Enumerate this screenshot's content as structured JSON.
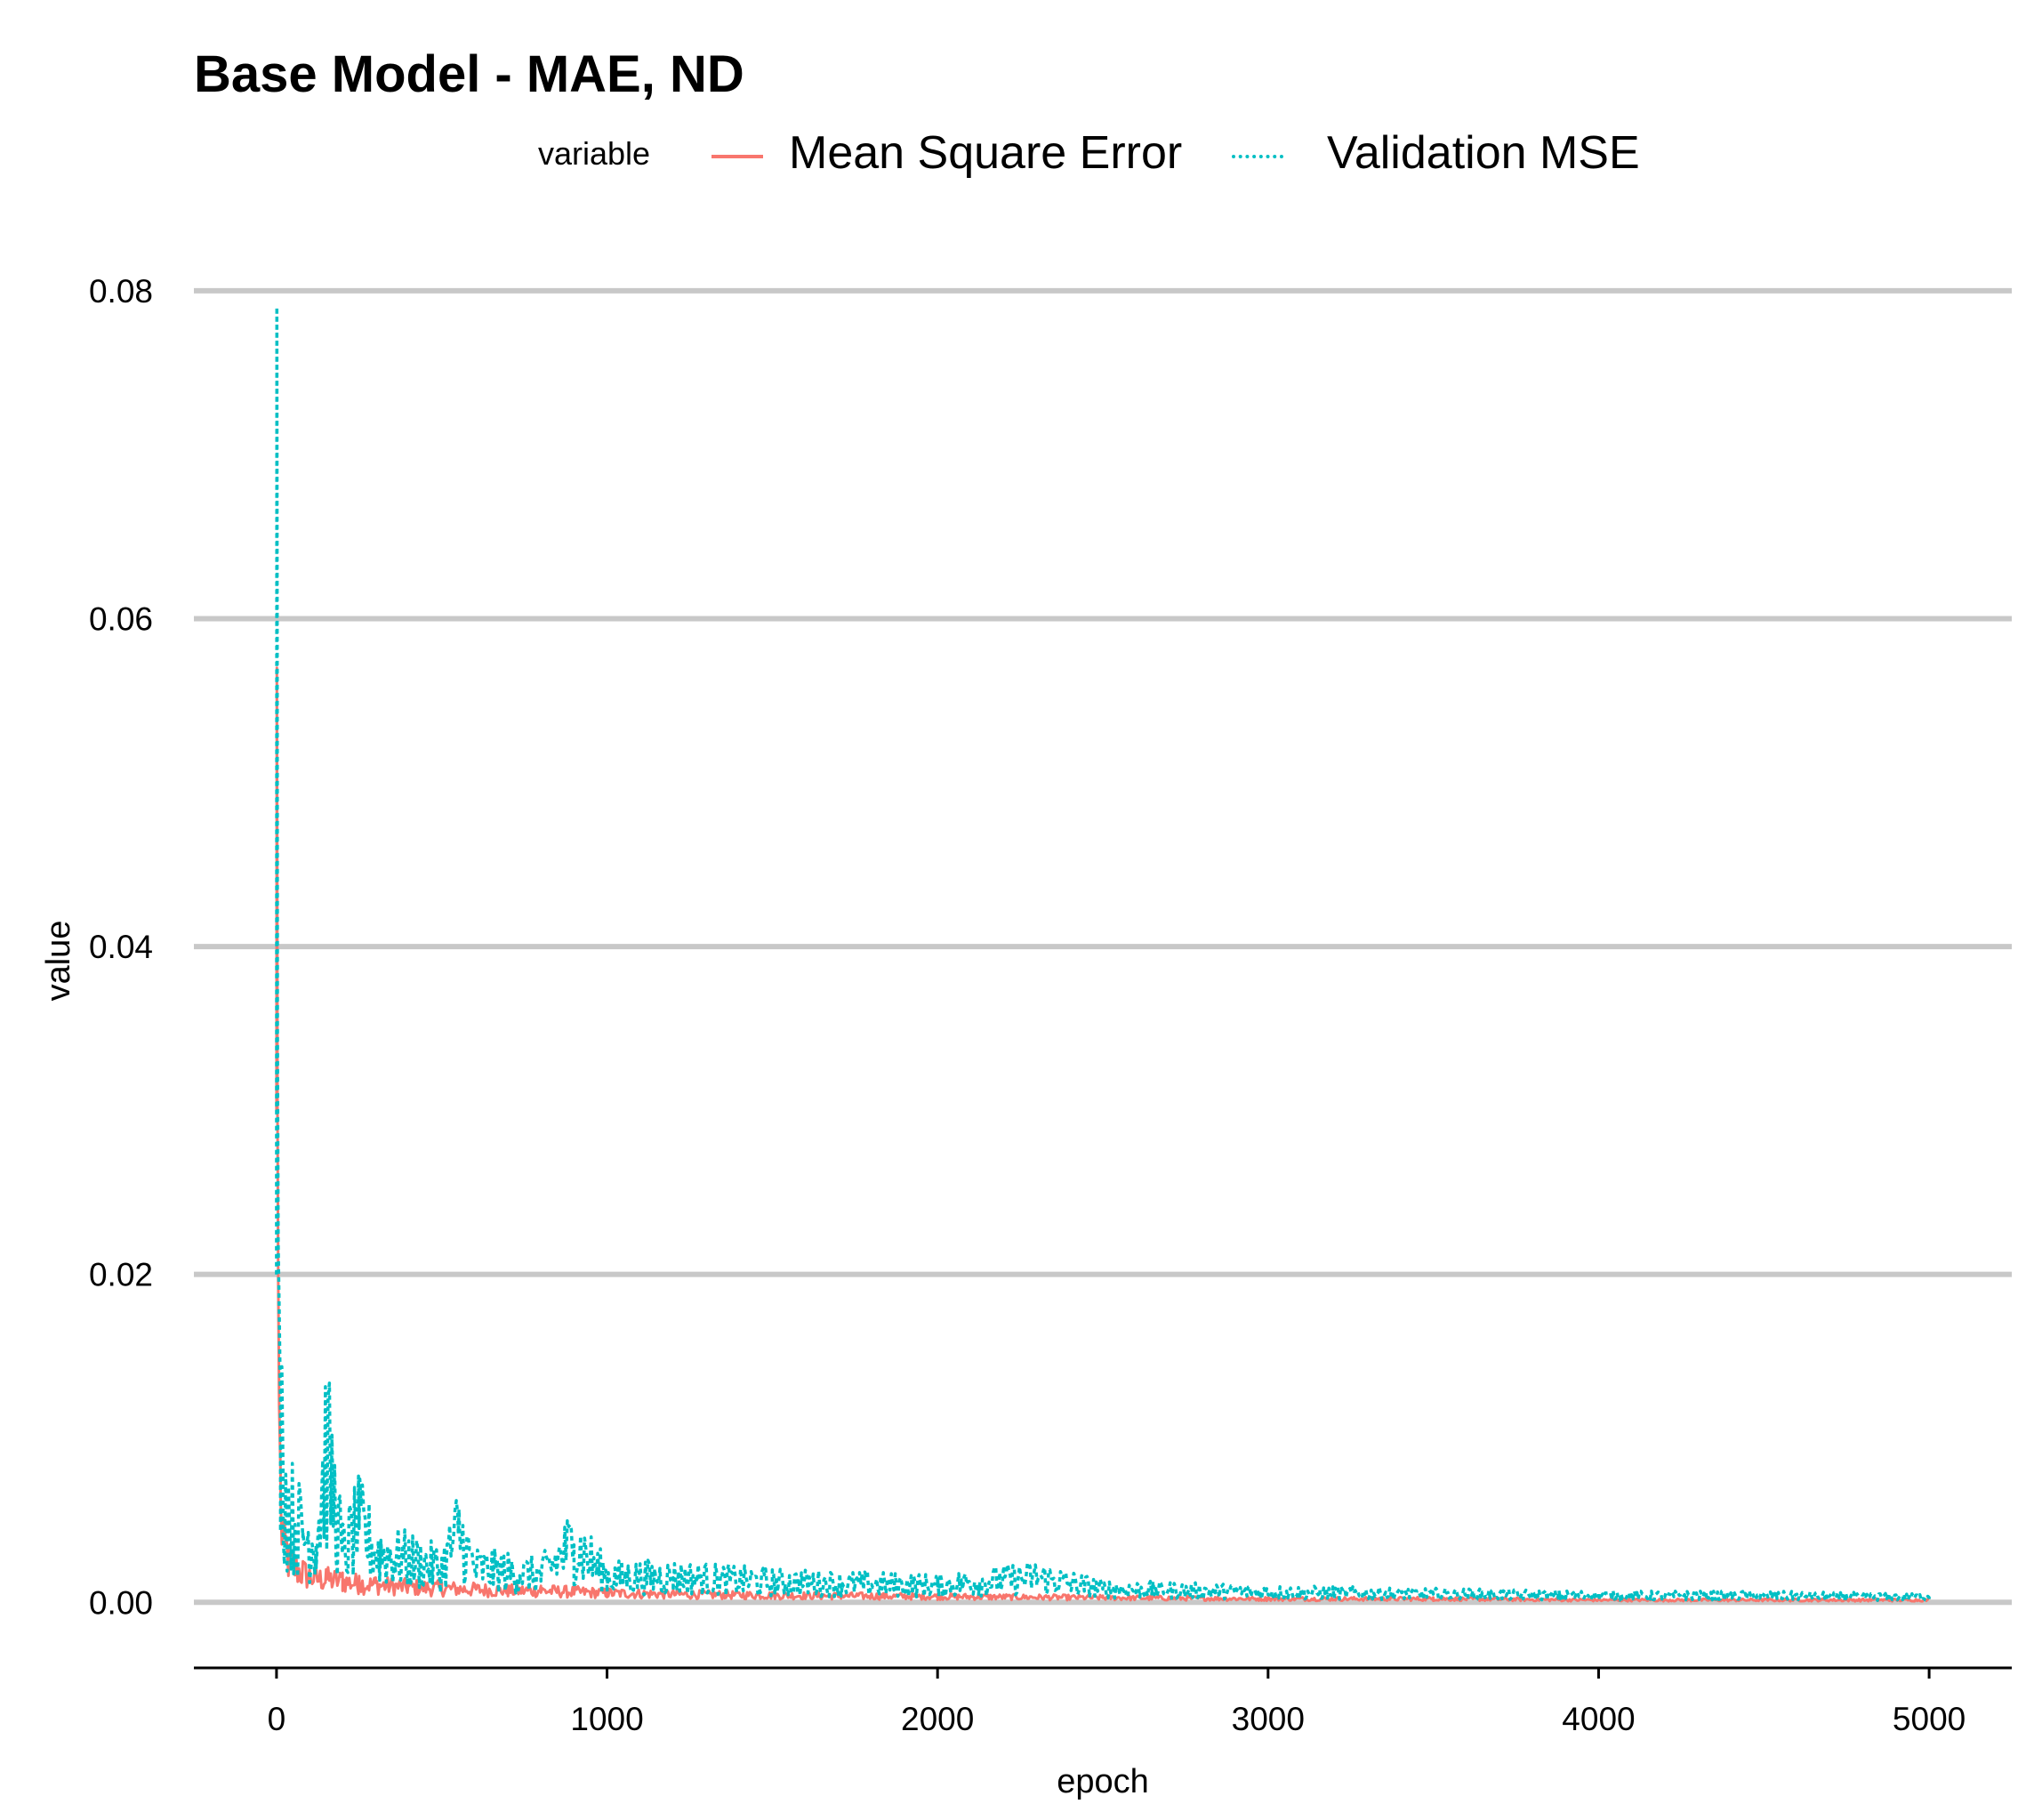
{
  "colors": {
    "mse": "#F8766D",
    "val": "#00BFC4",
    "grid": "#C8C8C8",
    "axis": "#000000"
  },
  "chart_data": {
    "type": "line",
    "title": "Base Model - MAE, ND",
    "xlabel": "epoch",
    "ylabel": "value",
    "xlim": [
      -250,
      5250
    ],
    "ylim": [
      -0.004,
      0.082
    ],
    "xticks": [
      0,
      1000,
      2000,
      3000,
      4000,
      5000
    ],
    "yticks": [
      0.0,
      0.02,
      0.04,
      0.06,
      0.08
    ],
    "xtick_labels": [
      "0",
      "1000",
      "2000",
      "3000",
      "4000",
      "5000"
    ],
    "ytick_labels": [
      "0.00",
      "0.02",
      "0.04",
      "0.06",
      "0.08"
    ],
    "grid": "horizontal major",
    "legend": {
      "title": "variable",
      "position": "top"
    },
    "series": [
      {
        "name": "Mean Square Error",
        "line_style": "solid",
        "x": [
          0,
          1,
          2,
          3,
          5,
          8,
          12,
          20,
          30,
          50,
          80,
          120,
          150,
          200,
          250,
          300,
          400,
          500,
          600,
          700,
          800,
          900,
          1000,
          1200,
          1500,
          2000,
          2500,
          3000,
          3500,
          4000,
          4500,
          5000
        ],
        "y": [
          0.03,
          0.057,
          0.045,
          0.03,
          0.02,
          0.012,
          0.008,
          0.005,
          0.004,
          0.003,
          0.0025,
          0.002,
          0.002,
          0.0018,
          0.0016,
          0.0015,
          0.0013,
          0.0012,
          0.0011,
          0.001,
          0.001,
          0.0009,
          0.0008,
          0.0007,
          0.0006,
          0.0005,
          0.0004,
          0.0003,
          0.0003,
          0.0002,
          0.0002,
          0.0002
        ]
      },
      {
        "name": "Validation MSE",
        "line_style": "dotted",
        "x": [
          0,
          1,
          2,
          3,
          5,
          8,
          12,
          20,
          30,
          50,
          80,
          120,
          150,
          200,
          250,
          300,
          400,
          500,
          550,
          600,
          700,
          800,
          900,
          1000,
          1200,
          1500,
          2000,
          2300,
          2500,
          3000,
          3500,
          4000,
          4500,
          5000
        ],
        "y": [
          0.02,
          0.079,
          0.058,
          0.035,
          0.022,
          0.018,
          0.012,
          0.008,
          0.006,
          0.005,
          0.004,
          0.0035,
          0.009,
          0.003,
          0.0045,
          0.003,
          0.0025,
          0.002,
          0.0042,
          0.002,
          0.0018,
          0.0016,
          0.0035,
          0.0015,
          0.0015,
          0.0012,
          0.001,
          0.0015,
          0.0008,
          0.0006,
          0.0005,
          0.0004,
          0.0004,
          0.0003
        ]
      }
    ]
  }
}
